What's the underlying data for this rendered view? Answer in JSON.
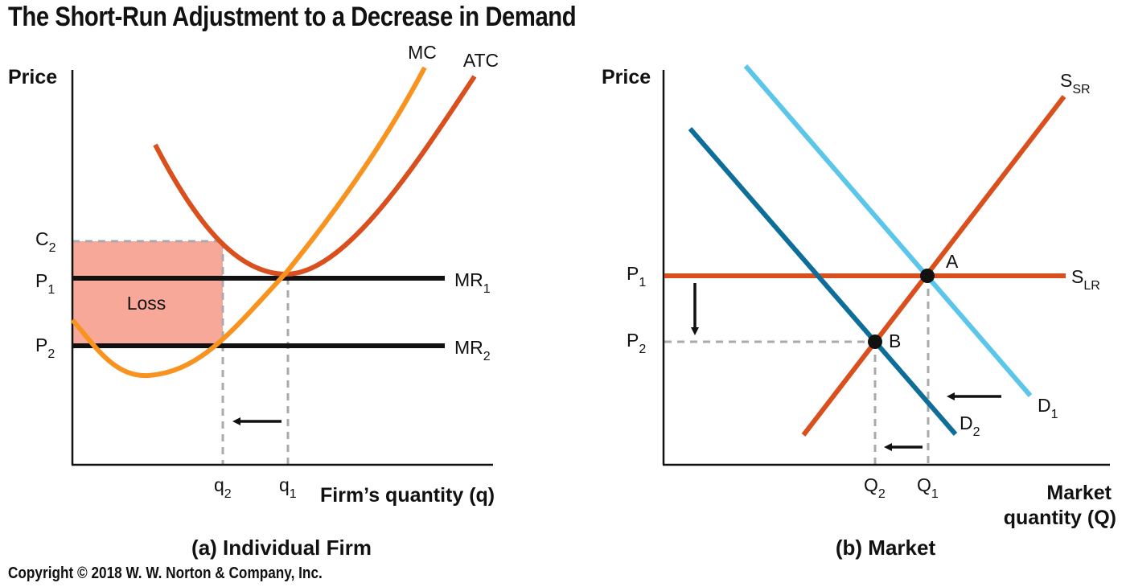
{
  "title": "The Short-Run Adjustment to a Decrease in Demand",
  "copyright": "Copyright © 2018 W. W. Norton & Company, Inc.",
  "colors": {
    "mc": "#F7931E",
    "atc": "#D94F1E",
    "mr": "#111111",
    "loss": "#F7A898",
    "d1": "#5BC5EA",
    "d2": "#0E6E9A",
    "supply": "#D94F1E",
    "dash": "#AAAAAA"
  },
  "panel_a": {
    "caption": "(a) Individual Firm",
    "y_label": "Price",
    "x_label": "Firm’s quantity (q)",
    "loss_label": "Loss",
    "curves": {
      "mc": "MC",
      "atc": "ATC",
      "mr1": {
        "base": "MR",
        "sub": "1"
      },
      "mr2": {
        "base": "MR",
        "sub": "2"
      }
    },
    "y_ticks": {
      "c2": {
        "base": "C",
        "sub": "2"
      },
      "p1": {
        "base": "P",
        "sub": "1"
      },
      "p2": {
        "base": "P",
        "sub": "2"
      }
    },
    "x_ticks": {
      "q2": {
        "base": "q",
        "sub": "2"
      },
      "q1": {
        "base": "q",
        "sub": "1"
      }
    }
  },
  "panel_b": {
    "caption": "(b) Market",
    "y_label": "Price",
    "x_label_line1": "Market",
    "x_label_line2": "quantity (Q)",
    "points": {
      "a": "A",
      "b": "B"
    },
    "curves": {
      "ssr": {
        "base": "S",
        "sub": "SR"
      },
      "slr": {
        "base": "S",
        "sub": "LR"
      },
      "d1": {
        "base": "D",
        "sub": "1"
      },
      "d2": {
        "base": "D",
        "sub": "2"
      }
    },
    "y_ticks": {
      "p1": {
        "base": "P",
        "sub": "1"
      },
      "p2": {
        "base": "P",
        "sub": "2"
      }
    },
    "x_ticks": {
      "q2": {
        "base": "Q",
        "sub": "2"
      },
      "q1": {
        "base": "Q",
        "sub": "1"
      }
    }
  }
}
